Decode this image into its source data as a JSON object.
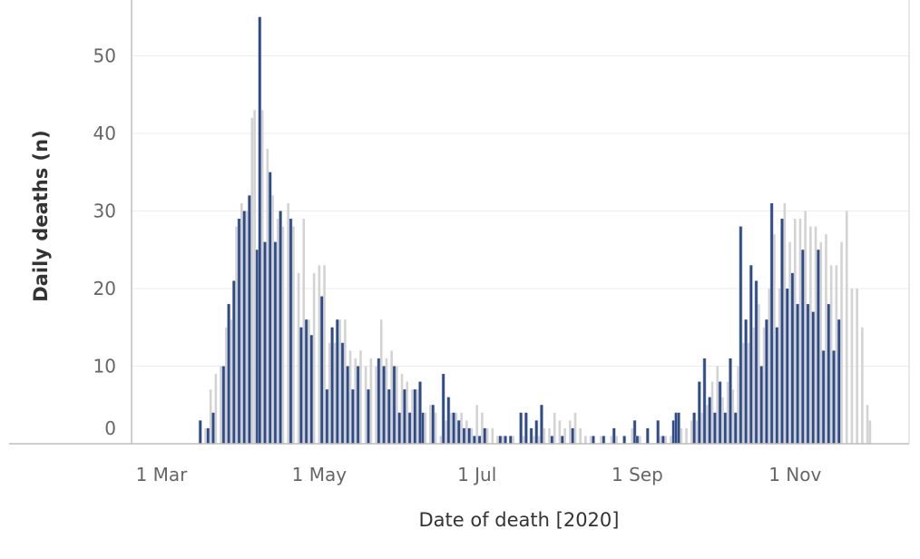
{
  "chart_data": {
    "type": "bar",
    "xlabel": "Date of death [2020]",
    "ylabel": "Daily deaths (n)",
    "ylim": [
      0,
      55
    ],
    "xlim": [
      "2020-02-25",
      "2020-12-31"
    ],
    "grid": "horizontal",
    "legend": "none",
    "y_ticks": [
      0,
      10,
      20,
      30,
      40,
      50
    ],
    "x_ticks": [
      {
        "date": "2020-03-01",
        "label": "1 Mar"
      },
      {
        "date": "2020-05-01",
        "label": "1 May"
      },
      {
        "date": "2020-07-01",
        "label": "1 Jul"
      },
      {
        "date": "2020-09-01",
        "label": "1 Sep"
      },
      {
        "date": "2020-11-01",
        "label": "1 Nov"
      }
    ],
    "colors": {
      "highlight": "#2e4b87",
      "highlight_edge": "#aeb9cf",
      "base": "#d3d3d3",
      "grid": "#ececec",
      "axis": "#bdbdbd"
    },
    "series": [
      {
        "style": "grey",
        "points": [
          [
            "2020-03-18",
            2
          ],
          [
            "2020-03-20",
            7
          ],
          [
            "2020-03-22",
            9
          ],
          [
            "2020-03-24",
            10
          ],
          [
            "2020-03-26",
            15
          ],
          [
            "2020-03-28",
            16
          ],
          [
            "2020-03-30",
            28
          ],
          [
            "2020-04-01",
            31
          ],
          [
            "2020-04-03",
            30
          ],
          [
            "2020-04-05",
            42
          ],
          [
            "2020-04-06",
            43
          ],
          [
            "2020-04-09",
            43
          ],
          [
            "2020-04-11",
            38
          ],
          [
            "2020-04-13",
            32
          ],
          [
            "2020-04-15",
            29
          ],
          [
            "2020-04-17",
            28
          ],
          [
            "2020-04-19",
            31
          ],
          [
            "2020-04-21",
            28
          ],
          [
            "2020-04-23",
            22
          ],
          [
            "2020-04-25",
            29
          ],
          [
            "2020-04-27",
            16
          ],
          [
            "2020-04-29",
            22
          ],
          [
            "2020-05-01",
            23
          ],
          [
            "2020-05-03",
            23
          ],
          [
            "2020-05-05",
            13
          ],
          [
            "2020-05-07",
            13
          ],
          [
            "2020-05-09",
            16
          ],
          [
            "2020-05-11",
            16
          ],
          [
            "2020-05-13",
            12
          ],
          [
            "2020-05-15",
            11
          ],
          [
            "2020-05-17",
            12
          ],
          [
            "2020-05-19",
            10
          ],
          [
            "2020-05-21",
            11
          ],
          [
            "2020-05-23",
            10
          ],
          [
            "2020-05-25",
            16
          ],
          [
            "2020-05-27",
            11
          ],
          [
            "2020-05-29",
            12
          ],
          [
            "2020-05-31",
            10
          ],
          [
            "2020-06-02",
            9
          ],
          [
            "2020-06-04",
            8
          ],
          [
            "2020-06-06",
            7
          ],
          [
            "2020-06-08",
            7
          ],
          [
            "2020-06-11",
            4
          ],
          [
            "2020-06-13",
            5
          ],
          [
            "2020-06-15",
            4
          ],
          [
            "2020-06-17",
            1
          ],
          [
            "2020-06-19",
            3
          ],
          [
            "2020-06-21",
            4
          ],
          [
            "2020-06-23",
            4
          ],
          [
            "2020-06-25",
            4
          ],
          [
            "2020-06-27",
            3
          ],
          [
            "2020-06-29",
            2
          ],
          [
            "2020-07-01",
            5
          ],
          [
            "2020-07-03",
            4
          ],
          [
            "2020-07-05",
            2
          ],
          [
            "2020-07-07",
            2
          ],
          [
            "2020-07-09",
            1
          ],
          [
            "2020-07-11",
            1
          ],
          [
            "2020-07-15",
            1
          ],
          [
            "2020-07-19",
            1
          ],
          [
            "2020-07-23",
            1
          ],
          [
            "2020-07-25",
            1
          ],
          [
            "2020-07-27",
            2
          ],
          [
            "2020-07-29",
            2
          ],
          [
            "2020-07-31",
            4
          ],
          [
            "2020-08-02",
            3
          ],
          [
            "2020-08-04",
            2
          ],
          [
            "2020-08-06",
            3
          ],
          [
            "2020-08-08",
            4
          ],
          [
            "2020-08-10",
            2
          ],
          [
            "2020-08-12",
            1
          ],
          [
            "2020-08-14",
            1
          ],
          [
            "2020-08-18",
            1
          ],
          [
            "2020-08-22",
            1
          ],
          [
            "2020-08-24",
            1
          ],
          [
            "2020-08-30",
            2
          ],
          [
            "2020-09-02",
            1
          ],
          [
            "2020-09-10",
            1
          ],
          [
            "2020-09-12",
            1
          ],
          [
            "2020-09-14",
            1
          ],
          [
            "2020-09-18",
            2
          ],
          [
            "2020-09-20",
            2
          ],
          [
            "2020-09-22",
            3
          ],
          [
            "2020-09-24",
            3
          ],
          [
            "2020-09-26",
            4
          ],
          [
            "2020-09-28",
            5
          ],
          [
            "2020-09-30",
            8
          ],
          [
            "2020-10-02",
            10
          ],
          [
            "2020-10-04",
            6
          ],
          [
            "2020-10-06",
            8
          ],
          [
            "2020-10-08",
            7
          ],
          [
            "2020-10-10",
            10
          ],
          [
            "2020-10-12",
            13
          ],
          [
            "2020-10-14",
            13
          ],
          [
            "2020-10-16",
            15
          ],
          [
            "2020-10-18",
            18
          ],
          [
            "2020-10-20",
            15
          ],
          [
            "2020-10-22",
            20
          ],
          [
            "2020-10-24",
            27
          ],
          [
            "2020-10-26",
            20
          ],
          [
            "2020-10-28",
            31
          ],
          [
            "2020-10-30",
            26
          ],
          [
            "2020-11-01",
            29
          ],
          [
            "2020-11-03",
            29
          ],
          [
            "2020-11-05",
            30
          ],
          [
            "2020-11-07",
            28
          ],
          [
            "2020-11-09",
            28
          ],
          [
            "2020-11-11",
            26
          ],
          [
            "2020-11-13",
            27
          ],
          [
            "2020-11-15",
            23
          ],
          [
            "2020-11-17",
            23
          ],
          [
            "2020-11-19",
            26
          ],
          [
            "2020-11-21",
            30
          ],
          [
            "2020-11-23",
            20
          ],
          [
            "2020-11-25",
            20
          ],
          [
            "2020-11-27",
            15
          ],
          [
            "2020-11-29",
            5
          ],
          [
            "2020-11-30",
            3
          ]
        ]
      },
      {
        "style": "navy",
        "points": [
          [
            "2020-03-16",
            3
          ],
          [
            "2020-03-19",
            2
          ],
          [
            "2020-03-21",
            4
          ],
          [
            "2020-03-25",
            10
          ],
          [
            "2020-03-27",
            18
          ],
          [
            "2020-03-29",
            21
          ],
          [
            "2020-03-31",
            29
          ],
          [
            "2020-04-02",
            30
          ],
          [
            "2020-04-04",
            32
          ],
          [
            "2020-04-07",
            25
          ],
          [
            "2020-04-08",
            55
          ],
          [
            "2020-04-10",
            26
          ],
          [
            "2020-04-12",
            35
          ],
          [
            "2020-04-14",
            26
          ],
          [
            "2020-04-16",
            30
          ],
          [
            "2020-04-20",
            29
          ],
          [
            "2020-04-24",
            15
          ],
          [
            "2020-04-26",
            16
          ],
          [
            "2020-04-28",
            14
          ],
          [
            "2020-05-02",
            19
          ],
          [
            "2020-05-04",
            7
          ],
          [
            "2020-05-06",
            15
          ],
          [
            "2020-05-08",
            16
          ],
          [
            "2020-05-10",
            13
          ],
          [
            "2020-05-12",
            10
          ],
          [
            "2020-05-14",
            7
          ],
          [
            "2020-05-16",
            10
          ],
          [
            "2020-05-20",
            7
          ],
          [
            "2020-05-24",
            11
          ],
          [
            "2020-05-26",
            10
          ],
          [
            "2020-05-28",
            7
          ],
          [
            "2020-05-30",
            10
          ],
          [
            "2020-06-01",
            4
          ],
          [
            "2020-06-03",
            7
          ],
          [
            "2020-06-05",
            4
          ],
          [
            "2020-06-07",
            7
          ],
          [
            "2020-06-09",
            8
          ],
          [
            "2020-06-10",
            4
          ],
          [
            "2020-06-14",
            5
          ],
          [
            "2020-06-18",
            9
          ],
          [
            "2020-06-20",
            6
          ],
          [
            "2020-06-22",
            4
          ],
          [
            "2020-06-24",
            3
          ],
          [
            "2020-06-26",
            2
          ],
          [
            "2020-06-28",
            2
          ],
          [
            "2020-06-30",
            1
          ],
          [
            "2020-07-02",
            1
          ],
          [
            "2020-07-04",
            2
          ],
          [
            "2020-07-10",
            1
          ],
          [
            "2020-07-12",
            1
          ],
          [
            "2020-07-14",
            1
          ],
          [
            "2020-07-18",
            4
          ],
          [
            "2020-07-20",
            4
          ],
          [
            "2020-07-22",
            2
          ],
          [
            "2020-07-24",
            3
          ],
          [
            "2020-07-26",
            5
          ],
          [
            "2020-07-30",
            1
          ],
          [
            "2020-08-03",
            1
          ],
          [
            "2020-08-07",
            2
          ],
          [
            "2020-08-15",
            1
          ],
          [
            "2020-08-19",
            1
          ],
          [
            "2020-08-23",
            2
          ],
          [
            "2020-08-27",
            1
          ],
          [
            "2020-08-31",
            3
          ],
          [
            "2020-09-01",
            1
          ],
          [
            "2020-09-05",
            2
          ],
          [
            "2020-09-09",
            3
          ],
          [
            "2020-09-11",
            1
          ],
          [
            "2020-09-15",
            3
          ],
          [
            "2020-09-16",
            4
          ],
          [
            "2020-09-17",
            4
          ],
          [
            "2020-09-23",
            4
          ],
          [
            "2020-09-25",
            8
          ],
          [
            "2020-09-27",
            11
          ],
          [
            "2020-09-29",
            6
          ],
          [
            "2020-10-01",
            4
          ],
          [
            "2020-10-03",
            8
          ],
          [
            "2020-10-05",
            4
          ],
          [
            "2020-10-07",
            11
          ],
          [
            "2020-10-09",
            4
          ],
          [
            "2020-10-11",
            28
          ],
          [
            "2020-10-13",
            16
          ],
          [
            "2020-10-15",
            23
          ],
          [
            "2020-10-17",
            21
          ],
          [
            "2020-10-19",
            10
          ],
          [
            "2020-10-21",
            16
          ],
          [
            "2020-10-23",
            31
          ],
          [
            "2020-10-25",
            15
          ],
          [
            "2020-10-27",
            29
          ],
          [
            "2020-10-29",
            20
          ],
          [
            "2020-10-31",
            22
          ],
          [
            "2020-11-02",
            18
          ],
          [
            "2020-11-04",
            25
          ],
          [
            "2020-11-06",
            18
          ],
          [
            "2020-11-08",
            17
          ],
          [
            "2020-11-10",
            25
          ],
          [
            "2020-11-12",
            12
          ],
          [
            "2020-11-14",
            18
          ],
          [
            "2020-11-16",
            12
          ],
          [
            "2020-11-18",
            16
          ]
        ]
      }
    ]
  }
}
